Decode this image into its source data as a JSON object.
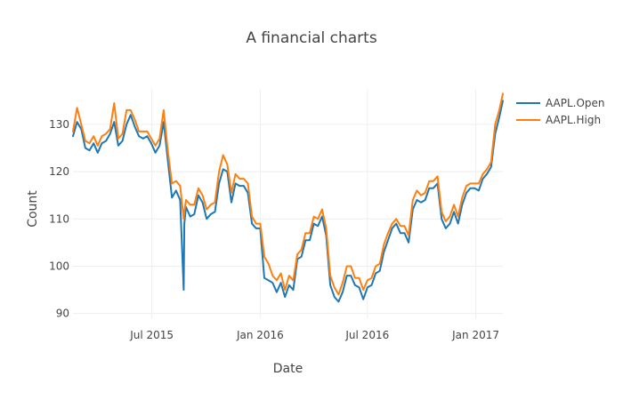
{
  "chart_data": {
    "type": "line",
    "title": "A financial charts",
    "xlabel": "Date",
    "ylabel": "Count",
    "xlim": [
      "2015-02-17",
      "2017-02-16"
    ],
    "ylim": [
      89.0,
      137.5
    ],
    "x_ticks": [
      {
        "date": "2015-07-01",
        "label": "Jul 2015"
      },
      {
        "date": "2016-01-01",
        "label": "Jan 2016"
      },
      {
        "date": "2016-07-01",
        "label": "Jul 2016"
      },
      {
        "date": "2017-01-01",
        "label": "Jan 2017"
      }
    ],
    "y_ticks": [
      90,
      100,
      110,
      120,
      130
    ],
    "grid": true,
    "legend_position": "top-right",
    "series": [
      {
        "name": "AAPL.Open",
        "color": "#1f77b4",
        "x": [
          "2015-02-17",
          "2015-02-24",
          "2015-03-03",
          "2015-03-10",
          "2015-03-17",
          "2015-03-24",
          "2015-03-31",
          "2015-04-07",
          "2015-04-14",
          "2015-04-21",
          "2015-04-28",
          "2015-05-05",
          "2015-05-12",
          "2015-05-19",
          "2015-05-26",
          "2015-06-02",
          "2015-06-09",
          "2015-06-16",
          "2015-06-23",
          "2015-06-30",
          "2015-07-07",
          "2015-07-14",
          "2015-07-21",
          "2015-07-28",
          "2015-08-04",
          "2015-08-11",
          "2015-08-18",
          "2015-08-24",
          "2015-08-25",
          "2015-08-28",
          "2015-09-04",
          "2015-09-11",
          "2015-09-18",
          "2015-09-25",
          "2015-10-02",
          "2015-10-09",
          "2015-10-16",
          "2015-10-23",
          "2015-10-30",
          "2015-11-06",
          "2015-11-13",
          "2015-11-20",
          "2015-11-27",
          "2015-12-04",
          "2015-12-11",
          "2015-12-18",
          "2015-12-25",
          "2016-01-01",
          "2016-01-08",
          "2016-01-15",
          "2016-01-22",
          "2016-01-29",
          "2016-02-05",
          "2016-02-12",
          "2016-02-19",
          "2016-02-26",
          "2016-03-04",
          "2016-03-11",
          "2016-03-18",
          "2016-03-25",
          "2016-04-01",
          "2016-04-08",
          "2016-04-15",
          "2016-04-22",
          "2016-04-29",
          "2016-05-06",
          "2016-05-13",
          "2016-05-20",
          "2016-05-27",
          "2016-06-03",
          "2016-06-10",
          "2016-06-17",
          "2016-06-24",
          "2016-07-01",
          "2016-07-08",
          "2016-07-15",
          "2016-07-22",
          "2016-07-29",
          "2016-08-05",
          "2016-08-12",
          "2016-08-19",
          "2016-08-26",
          "2016-09-02",
          "2016-09-09",
          "2016-09-16",
          "2016-09-23",
          "2016-09-30",
          "2016-10-07",
          "2016-10-14",
          "2016-10-21",
          "2016-10-28",
          "2016-11-04",
          "2016-11-11",
          "2016-11-18",
          "2016-11-25",
          "2016-12-02",
          "2016-12-09",
          "2016-12-16",
          "2016-12-23",
          "2016-12-30",
          "2017-01-06",
          "2017-01-13",
          "2017-01-20",
          "2017-01-27",
          "2017-02-03",
          "2017-02-10",
          "2017-02-16"
        ],
        "y": [
          127.5,
          130.5,
          129.0,
          125.0,
          124.5,
          126.0,
          124.0,
          126.0,
          126.5,
          128.0,
          130.5,
          125.5,
          126.5,
          130.0,
          132.0,
          129.5,
          127.5,
          127.0,
          127.5,
          126.0,
          124.0,
          125.5,
          130.5,
          122.5,
          114.5,
          116.0,
          114.0,
          95.0,
          109.0,
          112.5,
          110.5,
          111.0,
          115.0,
          113.5,
          110.0,
          111.0,
          111.5,
          117.5,
          120.5,
          120.0,
          113.5,
          117.5,
          117.0,
          117.0,
          115.5,
          109.0,
          108.0,
          108.0,
          97.5,
          97.0,
          96.5,
          94.5,
          96.5,
          93.5,
          96.0,
          95.0,
          101.5,
          102.0,
          105.5,
          105.5,
          109.0,
          108.5,
          110.5,
          106.5,
          96.0,
          93.5,
          92.5,
          94.5,
          98.0,
          98.0,
          96.0,
          95.5,
          93.0,
          95.5,
          96.0,
          98.5,
          99.0,
          103.0,
          105.5,
          108.0,
          109.0,
          107.0,
          107.0,
          105.0,
          112.0,
          114.0,
          113.5,
          114.0,
          116.5,
          116.5,
          117.5,
          110.0,
          108.0,
          109.0,
          111.5,
          109.0,
          113.0,
          115.5,
          116.5,
          116.5,
          116.0,
          118.5,
          119.5,
          121.0,
          128.0,
          131.5,
          135.0
        ]
      },
      {
        "name": "AAPL.High",
        "color": "#ff7f0e",
        "x": [
          "2015-02-17",
          "2015-02-24",
          "2015-03-03",
          "2015-03-10",
          "2015-03-17",
          "2015-03-24",
          "2015-03-31",
          "2015-04-07",
          "2015-04-14",
          "2015-04-21",
          "2015-04-28",
          "2015-05-05",
          "2015-05-12",
          "2015-05-19",
          "2015-05-26",
          "2015-06-02",
          "2015-06-09",
          "2015-06-16",
          "2015-06-23",
          "2015-06-30",
          "2015-07-07",
          "2015-07-14",
          "2015-07-21",
          "2015-07-28",
          "2015-08-04",
          "2015-08-11",
          "2015-08-18",
          "2015-08-24",
          "2015-08-25",
          "2015-08-28",
          "2015-09-04",
          "2015-09-11",
          "2015-09-18",
          "2015-09-25",
          "2015-10-02",
          "2015-10-09",
          "2015-10-16",
          "2015-10-23",
          "2015-10-30",
          "2015-11-06",
          "2015-11-13",
          "2015-11-20",
          "2015-11-27",
          "2015-12-04",
          "2015-12-11",
          "2015-12-18",
          "2015-12-25",
          "2016-01-01",
          "2016-01-08",
          "2016-01-15",
          "2016-01-22",
          "2016-01-29",
          "2016-02-05",
          "2016-02-12",
          "2016-02-19",
          "2016-02-26",
          "2016-03-04",
          "2016-03-11",
          "2016-03-18",
          "2016-03-25",
          "2016-04-01",
          "2016-04-08",
          "2016-04-15",
          "2016-04-22",
          "2016-04-29",
          "2016-05-06",
          "2016-05-13",
          "2016-05-20",
          "2016-05-27",
          "2016-06-03",
          "2016-06-10",
          "2016-06-17",
          "2016-06-24",
          "2016-07-01",
          "2016-07-08",
          "2016-07-15",
          "2016-07-22",
          "2016-07-29",
          "2016-08-05",
          "2016-08-12",
          "2016-08-19",
          "2016-08-26",
          "2016-09-02",
          "2016-09-09",
          "2016-09-16",
          "2016-09-23",
          "2016-09-30",
          "2016-10-07",
          "2016-10-14",
          "2016-10-21",
          "2016-10-28",
          "2016-11-04",
          "2016-11-11",
          "2016-11-18",
          "2016-11-25",
          "2016-12-02",
          "2016-12-09",
          "2016-12-16",
          "2016-12-23",
          "2016-12-30",
          "2017-01-06",
          "2017-01-13",
          "2017-01-20",
          "2017-01-27",
          "2017-02-03",
          "2017-02-10",
          "2017-02-16"
        ],
        "y": [
          128.5,
          133.5,
          130.0,
          126.5,
          126.0,
          127.5,
          125.5,
          127.5,
          128.0,
          129.0,
          134.5,
          127.0,
          128.0,
          133.0,
          133.0,
          131.0,
          128.5,
          128.5,
          128.5,
          127.0,
          125.5,
          127.0,
          133.0,
          124.5,
          117.5,
          118.0,
          117.0,
          110.0,
          111.5,
          114.0,
          113.0,
          113.0,
          116.5,
          115.0,
          112.0,
          113.0,
          113.5,
          120.0,
          123.5,
          121.5,
          115.5,
          119.5,
          118.5,
          118.5,
          117.5,
          110.5,
          109.0,
          109.0,
          102.0,
          100.5,
          98.0,
          97.0,
          98.5,
          95.0,
          98.0,
          97.0,
          102.5,
          103.5,
          107.0,
          107.0,
          110.5,
          110.0,
          112.0,
          108.0,
          98.0,
          95.5,
          94.0,
          96.5,
          100.0,
          100.0,
          97.5,
          97.5,
          95.0,
          97.0,
          97.5,
          100.0,
          100.5,
          104.5,
          107.0,
          109.0,
          110.0,
          108.5,
          108.5,
          106.5,
          114.0,
          116.0,
          115.0,
          115.5,
          118.0,
          118.0,
          119.0,
          111.5,
          109.5,
          110.5,
          113.0,
          110.5,
          114.5,
          117.0,
          117.5,
          117.5,
          117.5,
          119.5,
          120.5,
          122.0,
          130.0,
          133.0,
          136.5
        ]
      }
    ]
  }
}
